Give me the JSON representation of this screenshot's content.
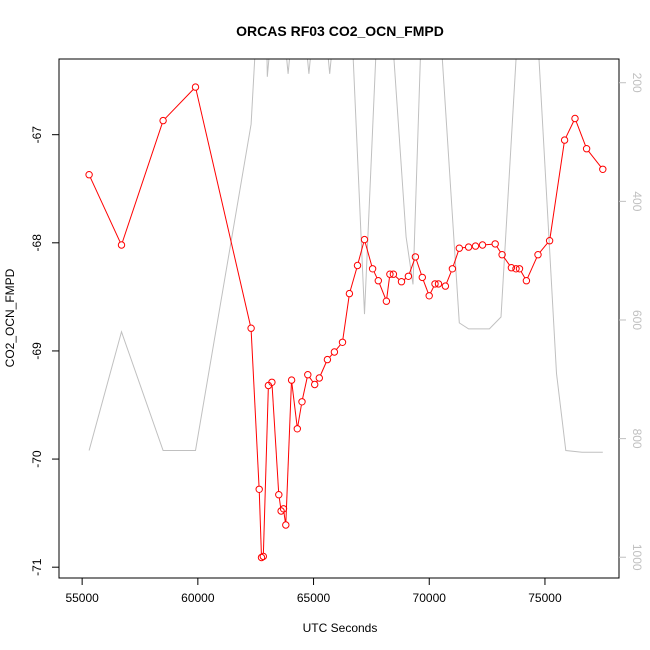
{
  "chart_data": {
    "type": "line",
    "title": "ORCAS RF03 CO2_OCN_FMPD",
    "xlabel": "UTC Seconds",
    "ylabel": "CO2_OCN_FMPD",
    "xlim": [
      54000,
      78200
    ],
    "ylim": [
      -71.1,
      -66.3
    ],
    "y2lim": [
      1035,
      160
    ],
    "x_ticks": [
      55000,
      60000,
      65000,
      70000,
      75000
    ],
    "y_ticks": [
      -71,
      -70,
      -69,
      -68,
      -67
    ],
    "y2_ticks": [
      200,
      400,
      600,
      800,
      1000
    ],
    "x_tick_labels": [
      "55000",
      "60000",
      "65000",
      "70000",
      "75000"
    ],
    "y_tick_labels": [
      "-71",
      "-70",
      "-69",
      "-68",
      "-67"
    ],
    "y2_tick_labels": [
      "200",
      "400",
      "600",
      "800",
      "1000"
    ],
    "grid": false,
    "colors": {
      "primary": "#ff0000",
      "secondary": "#c0c0c0",
      "axis": "#000000"
    },
    "series": [
      {
        "axis": "left",
        "marker": "open-circle",
        "points": [
          [
            55300,
            -67.37
          ],
          [
            56700,
            -68.02
          ],
          [
            58500,
            -66.87
          ],
          [
            59900,
            -66.56
          ],
          [
            62300,
            -68.79
          ],
          [
            62650,
            -70.28
          ],
          [
            62750,
            -70.91
          ],
          [
            62830,
            -70.9
          ],
          [
            63050,
            -69.32
          ],
          [
            63200,
            -69.29
          ],
          [
            63500,
            -70.33
          ],
          [
            63600,
            -70.48
          ],
          [
            63700,
            -70.46
          ],
          [
            63800,
            -70.61
          ],
          [
            64050,
            -69.27
          ],
          [
            64300,
            -69.72
          ],
          [
            64500,
            -69.47
          ],
          [
            64750,
            -69.22
          ],
          [
            65050,
            -69.31
          ],
          [
            65250,
            -69.25
          ],
          [
            65600,
            -69.08
          ],
          [
            65900,
            -69.01
          ],
          [
            66250,
            -68.92
          ],
          [
            66550,
            -68.47
          ],
          [
            66900,
            -68.21
          ],
          [
            67200,
            -67.97
          ],
          [
            67550,
            -68.24
          ],
          [
            67800,
            -68.35
          ],
          [
            68150,
            -68.54
          ],
          [
            68300,
            -68.29
          ],
          [
            68450,
            -68.29
          ],
          [
            68800,
            -68.36
          ],
          [
            69100,
            -68.31
          ],
          [
            69400,
            -68.13
          ],
          [
            69700,
            -68.32
          ],
          [
            70000,
            -68.49
          ],
          [
            70250,
            -68.38
          ],
          [
            70400,
            -68.38
          ],
          [
            70700,
            -68.4
          ],
          [
            71000,
            -68.24
          ],
          [
            71300,
            -68.05
          ],
          [
            71700,
            -68.04
          ],
          [
            72000,
            -68.03
          ],
          [
            72300,
            -68.02
          ],
          [
            72850,
            -68.01
          ],
          [
            73150,
            -68.11
          ],
          [
            73550,
            -68.23
          ],
          [
            73750,
            -68.24
          ],
          [
            73900,
            -68.24
          ],
          [
            74200,
            -68.35
          ],
          [
            74700,
            -68.11
          ],
          [
            75200,
            -67.98
          ],
          [
            75850,
            -67.05
          ],
          [
            76300,
            -66.85
          ],
          [
            76800,
            -67.13
          ],
          [
            77500,
            -67.32
          ]
        ]
      },
      {
        "axis": "right",
        "marker": "none",
        "points": [
          [
            55300,
            820
          ],
          [
            56700,
            620
          ],
          [
            58500,
            820
          ],
          [
            59900,
            820
          ],
          [
            62300,
            270
          ],
          [
            62600,
            60
          ],
          [
            62950,
            60
          ],
          [
            63000,
            190
          ],
          [
            63300,
            60
          ],
          [
            63600,
            60
          ],
          [
            63900,
            185
          ],
          [
            64200,
            60
          ],
          [
            64500,
            60
          ],
          [
            64800,
            185
          ],
          [
            65100,
            60
          ],
          [
            65400,
            60
          ],
          [
            65700,
            185
          ],
          [
            66000,
            60
          ],
          [
            66600,
            60
          ],
          [
            67200,
            590
          ],
          [
            67800,
            60
          ],
          [
            68300,
            60
          ],
          [
            69000,
            460
          ],
          [
            69300,
            540
          ],
          [
            69700,
            60
          ],
          [
            70400,
            60
          ],
          [
            71300,
            605
          ],
          [
            71700,
            615
          ],
          [
            72600,
            615
          ],
          [
            73100,
            595
          ],
          [
            73900,
            60
          ],
          [
            74600,
            60
          ],
          [
            75500,
            690
          ],
          [
            75900,
            820
          ],
          [
            76600,
            823
          ],
          [
            77500,
            823
          ]
        ]
      }
    ]
  }
}
